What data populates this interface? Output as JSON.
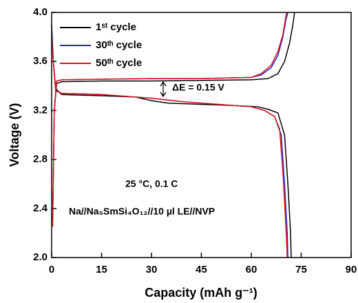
{
  "chart_data": {
    "type": "line",
    "xlabel": "Capacity (mAh g⁻¹)",
    "ylabel": "Voltage (V)",
    "xlim": [
      0,
      90
    ],
    "xticks": [
      0,
      15,
      30,
      45,
      60,
      75,
      90
    ],
    "ylim": [
      2.0,
      4.0
    ],
    "yticks": [
      {
        "value": 2.0,
        "label": "2.0"
      },
      2.4,
      2.8,
      3.2,
      3.6,
      {
        "value": 4.0,
        "label": "4.0"
      }
    ],
    "legend": "upper left",
    "annotations": [
      "ΔE = 0.15 V",
      "25 °C, 0.1 C",
      "Na//Na₅SmSi₄O₁₂//10 µl LE//NVP"
    ],
    "series": [
      {
        "name": "1ˢᵗ cycle",
        "color": "#000000",
        "x": [
          0.3,
          0.8,
          1.5,
          3,
          15,
          30,
          45,
          60,
          65,
          68,
          70,
          71.5,
          72.5,
          73,
          null,
          0,
          0.5,
          1.2,
          3,
          15,
          25,
          30,
          35,
          45,
          55,
          62,
          65,
          68,
          70,
          71,
          71.8,
          72
        ],
        "values": [
          2.3,
          3.2,
          3.42,
          3.435,
          3.44,
          3.44,
          3.445,
          3.45,
          3.46,
          3.5,
          3.6,
          3.75,
          3.9,
          4.0,
          null,
          3.9,
          3.6,
          3.38,
          3.33,
          3.32,
          3.31,
          3.28,
          3.26,
          3.25,
          3.24,
          3.23,
          3.21,
          3.18,
          3.0,
          2.6,
          2.2,
          2.0
        ]
      },
      {
        "name": "30ᵗʰ cycle",
        "color": "#2222cc",
        "x": [
          0.3,
          0.8,
          1.5,
          3,
          15,
          30,
          45,
          60,
          63,
          66,
          68,
          69.5,
          70.5,
          71,
          null,
          0,
          0.5,
          1.2,
          3,
          15,
          30,
          40,
          50,
          60,
          64,
          67,
          69,
          70,
          70.8,
          71
        ],
        "values": [
          2.3,
          3.2,
          3.44,
          3.45,
          3.455,
          3.46,
          3.46,
          3.47,
          3.49,
          3.55,
          3.65,
          3.8,
          3.95,
          4.0,
          null,
          3.85,
          3.6,
          3.37,
          3.34,
          3.33,
          3.3,
          3.27,
          3.25,
          3.23,
          3.2,
          3.15,
          3.0,
          2.6,
          2.2,
          2.0
        ]
      },
      {
        "name": "50ᵗʰ cycle",
        "color": "#e01010",
        "x": [
          0.3,
          0.8,
          1.5,
          3,
          15,
          30,
          45,
          60,
          63,
          66,
          68,
          69.5,
          70.3,
          70.6,
          null,
          0,
          0.5,
          1.2,
          3,
          15,
          30,
          40,
          50,
          60,
          64,
          67,
          68.5,
          69.5,
          70.5,
          70.8
        ],
        "values": [
          2.25,
          3.2,
          3.44,
          3.45,
          3.455,
          3.46,
          3.46,
          3.47,
          3.5,
          3.57,
          3.68,
          3.82,
          3.95,
          4.0,
          null,
          3.8,
          3.6,
          3.36,
          3.34,
          3.33,
          3.3,
          3.27,
          3.25,
          3.23,
          3.2,
          3.15,
          3.05,
          2.7,
          2.2,
          2.0
        ]
      }
    ]
  }
}
